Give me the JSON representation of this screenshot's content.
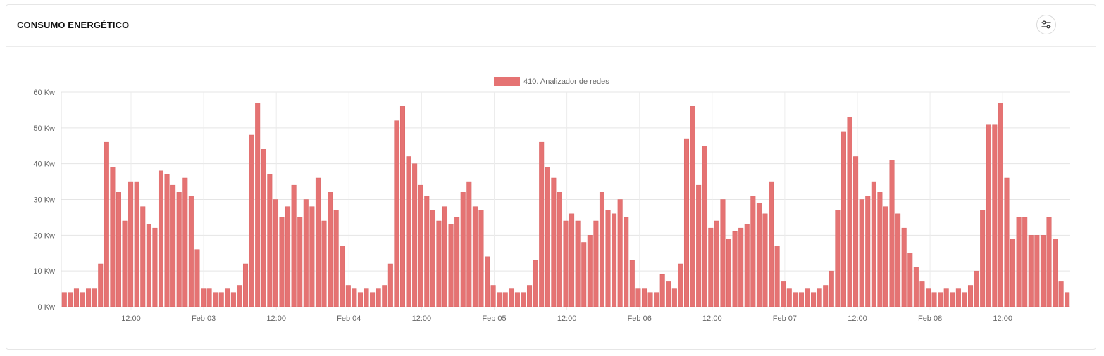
{
  "header": {
    "title": "CONSUMO ENERGÉTICO",
    "filter_icon": "sliders-icon"
  },
  "chart_data": {
    "type": "bar",
    "xlabel": "",
    "ylabel": "",
    "ylim": [
      0,
      60
    ],
    "yticks": [
      "0 Kw",
      "10 Kw",
      "20 Kw",
      "30 Kw",
      "40 Kw",
      "50 Kw",
      "60 Kw"
    ],
    "xticks": [
      "12:00",
      "Feb 03",
      "12:00",
      "Feb 04",
      "12:00",
      "Feb 05",
      "12:00",
      "Feb 06",
      "12:00",
      "Feb 07",
      "12:00",
      "Feb 08",
      "12:00"
    ],
    "legend_position": "top-center",
    "grid": true,
    "color": "#e57373",
    "series": [
      {
        "name": "410. Analizador de redes",
        "values": [
          4,
          4,
          5,
          4,
          5,
          5,
          12,
          46,
          39,
          32,
          24,
          35,
          35,
          28,
          23,
          22,
          38,
          37,
          34,
          32,
          36,
          31,
          16,
          5,
          5,
          4,
          4,
          5,
          4,
          6,
          12,
          48,
          57,
          44,
          37,
          30,
          25,
          28,
          34,
          25,
          30,
          28,
          36,
          24,
          32,
          27,
          17,
          6,
          5,
          4,
          5,
          4,
          5,
          6,
          12,
          52,
          56,
          42,
          40,
          34,
          31,
          27,
          24,
          28,
          23,
          25,
          32,
          35,
          28,
          27,
          14,
          6,
          4,
          4,
          5,
          4,
          4,
          6,
          13,
          46,
          39,
          36,
          32,
          24,
          26,
          24,
          18,
          20,
          24,
          32,
          27,
          26,
          30,
          25,
          13,
          5,
          5,
          4,
          4,
          9,
          7,
          5,
          12,
          47,
          56,
          34,
          45,
          22,
          24,
          30,
          19,
          21,
          22,
          23,
          31,
          29,
          26,
          35,
          17,
          7,
          5,
          4,
          4,
          5,
          4,
          5,
          6,
          10,
          27,
          49,
          53,
          42,
          30,
          31,
          35,
          32,
          28,
          41,
          26,
          22,
          15,
          11,
          7,
          5,
          4,
          4,
          5,
          4,
          5,
          4,
          6,
          10,
          27,
          51,
          51,
          57,
          36,
          19,
          25,
          25,
          20,
          20,
          20,
          25,
          19,
          7,
          4
        ]
      }
    ]
  }
}
